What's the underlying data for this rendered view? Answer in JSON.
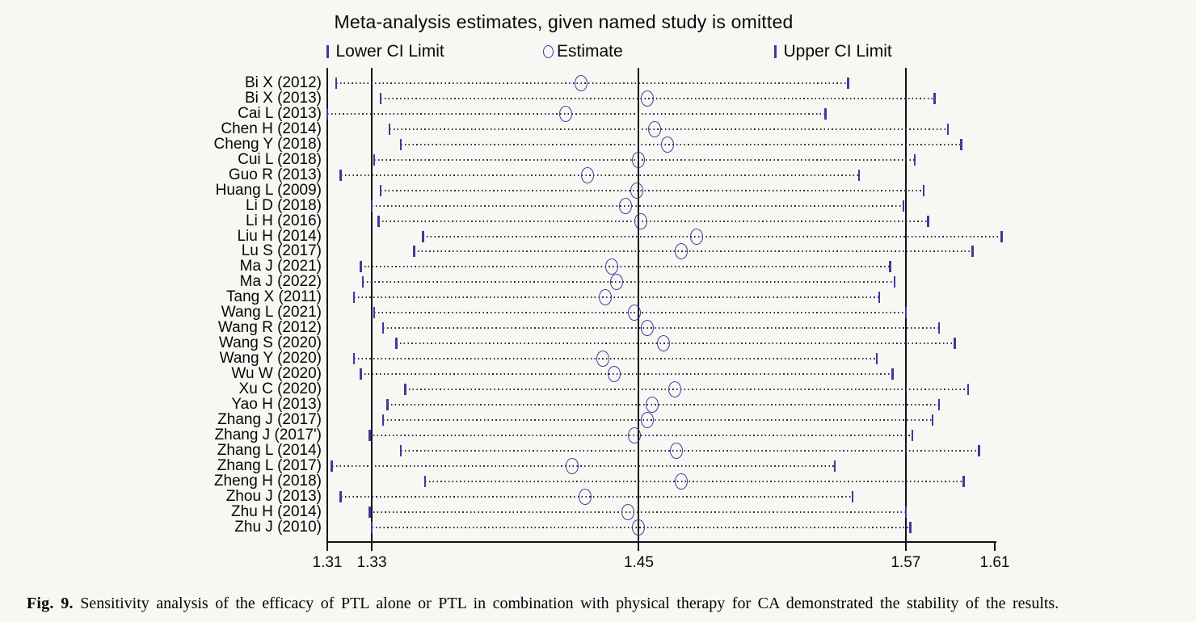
{
  "figure": {
    "title": "Meta-analysis estimates, given named study is omitted",
    "caption_label": "Fig. 9.",
    "caption_text": "Sensitivity analysis of the efficacy of PTL alone or PTL in combination with physical therapy for CA demonstrated the stability of the results."
  },
  "legend": {
    "lower_label": "Lower CI Limit",
    "estimate_label": "Estimate",
    "upper_label": "Upper CI Limit"
  },
  "colors": {
    "marker_blue": "#3a3aa0",
    "dotted_line": "#2e2e3e",
    "axis_black": "#121212",
    "background": "#f8f7f4"
  },
  "chart_data": {
    "type": "scatter",
    "subtype": "leave-one-out-sensitivity-forest",
    "xlabel": "",
    "ylabel": "",
    "x_range": [
      1.31,
      1.61
    ],
    "x_tick_labels": [
      "1.31",
      "1.33",
      "1.45",
      "1.57",
      "1.61"
    ],
    "x_ticks": [
      1.31,
      1.33,
      1.45,
      1.57,
      1.61
    ],
    "reference_lines": [
      1.33,
      1.45,
      1.57
    ],
    "pooled": {
      "estimate": 1.45,
      "lower_ci": 1.33,
      "upper_ci": 1.57
    },
    "grid": false,
    "legend_position": "top",
    "studies": [
      {
        "label": "Bi X (2012)",
        "lower": 1.314,
        "estimate": 1.424,
        "upper": 1.544
      },
      {
        "label": "Bi X (2013)",
        "lower": 1.334,
        "estimate": 1.454,
        "upper": 1.583
      },
      {
        "label": "Cai L (2013)",
        "lower": 1.31,
        "estimate": 1.417,
        "upper": 1.534
      },
      {
        "label": "Chen H (2014)",
        "lower": 1.338,
        "estimate": 1.457,
        "upper": 1.589
      },
      {
        "label": "Cheng Y (2018)",
        "lower": 1.343,
        "estimate": 1.463,
        "upper": 1.595
      },
      {
        "label": "Cui L (2018)",
        "lower": 1.331,
        "estimate": 1.45,
        "upper": 1.574
      },
      {
        "label": "Guo R (2013)",
        "lower": 1.316,
        "estimate": 1.427,
        "upper": 1.549
      },
      {
        "label": "Huang L (2009)",
        "lower": 1.334,
        "estimate": 1.449,
        "upper": 1.578
      },
      {
        "label": "Li D (2018)",
        "lower": 1.33,
        "estimate": 1.444,
        "upper": 1.569
      },
      {
        "label": "Li H (2016)",
        "lower": 1.333,
        "estimate": 1.451,
        "upper": 1.58
      },
      {
        "label": "Liu H (2014)",
        "lower": 1.353,
        "estimate": 1.476,
        "upper": 1.613
      },
      {
        "label": "Lu S (2017)",
        "lower": 1.349,
        "estimate": 1.469,
        "upper": 1.6
      },
      {
        "label": "Ma J (2021)",
        "lower": 1.325,
        "estimate": 1.438,
        "upper": 1.563
      },
      {
        "label": "Ma J (2022)",
        "lower": 1.326,
        "estimate": 1.44,
        "upper": 1.565
      },
      {
        "label": "Tang X (2011)",
        "lower": 1.322,
        "estimate": 1.435,
        "upper": 1.558
      },
      {
        "label": "Wang L (2021)",
        "lower": 1.331,
        "estimate": 1.448,
        "upper": 1.57
      },
      {
        "label": "Wang R (2012)",
        "lower": 1.335,
        "estimate": 1.454,
        "upper": 1.585
      },
      {
        "label": "Wang S (2020)",
        "lower": 1.341,
        "estimate": 1.461,
        "upper": 1.592
      },
      {
        "label": "Wang Y (2020)",
        "lower": 1.322,
        "estimate": 1.434,
        "upper": 1.557
      },
      {
        "label": "Wu W (2020)",
        "lower": 1.325,
        "estimate": 1.439,
        "upper": 1.564
      },
      {
        "label": "Xu C (2020)",
        "lower": 1.345,
        "estimate": 1.466,
        "upper": 1.598
      },
      {
        "label": "Yao H (2013)",
        "lower": 1.337,
        "estimate": 1.456,
        "upper": 1.585
      },
      {
        "label": "Zhang J (2017)",
        "lower": 1.335,
        "estimate": 1.454,
        "upper": 1.582
      },
      {
        "label": "Zhang J (2017')",
        "lower": 1.329,
        "estimate": 1.448,
        "upper": 1.573
      },
      {
        "label": "Zhang L (2014)",
        "lower": 1.343,
        "estimate": 1.467,
        "upper": 1.603
      },
      {
        "label": "Zhang L (2017)",
        "lower": 1.312,
        "estimate": 1.42,
        "upper": 1.538
      },
      {
        "label": "Zheng H (2018)",
        "lower": 1.354,
        "estimate": 1.469,
        "upper": 1.596
      },
      {
        "label": "Zhou J (2013)",
        "lower": 1.316,
        "estimate": 1.426,
        "upper": 1.546
      },
      {
        "label": "Zhu H (2014)",
        "lower": 1.329,
        "estimate": 1.445,
        "upper": 1.57
      },
      {
        "label": "Zhu J (2010)",
        "lower": 1.33,
        "estimate": 1.45,
        "upper": 1.572
      }
    ]
  }
}
